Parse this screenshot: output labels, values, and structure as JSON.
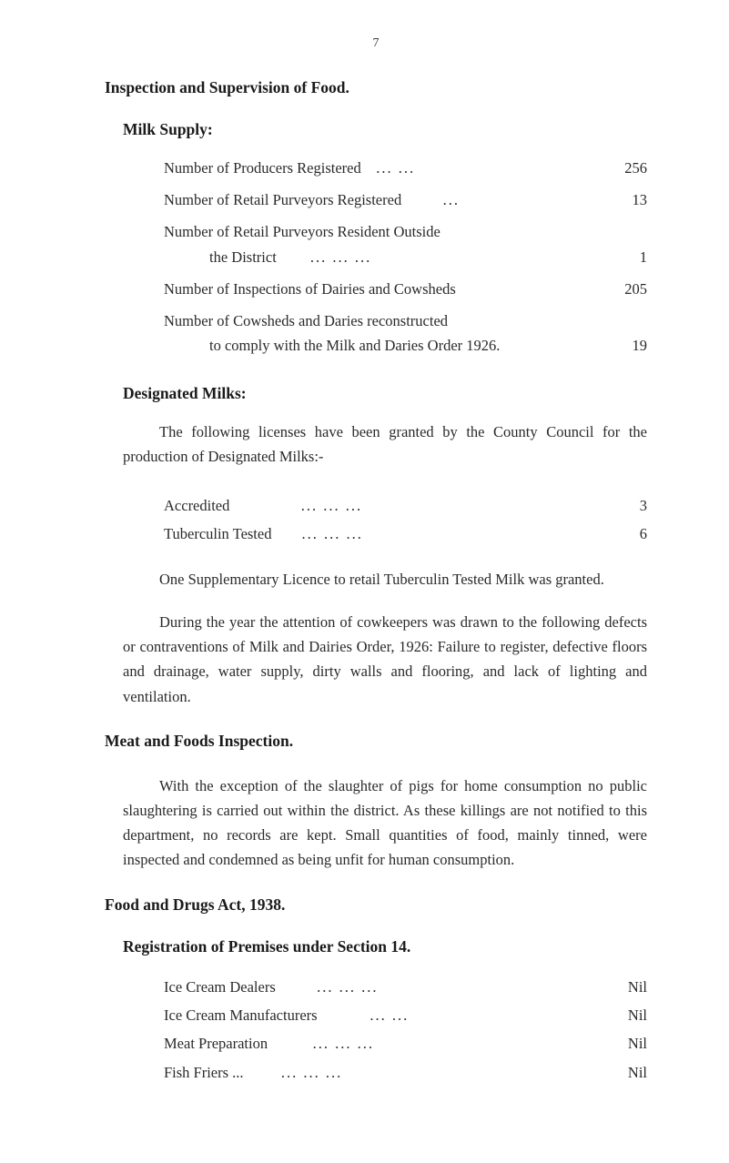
{
  "page_number": "7",
  "main_heading": "Inspection and Supervision of Food.",
  "milk_supply": {
    "heading": "Milk Supply:",
    "items": [
      {
        "label": "Number of Producers Registered",
        "dots": "...                           ...",
        "value": "256"
      },
      {
        "label": "Number of Retail Purveyors Registered",
        "dots": "...",
        "value": "13"
      },
      {
        "label": "Number of Retail Purveyors Resident Outside",
        "label2": "the District",
        "dots": "...                   ...                   ...",
        "value": "1"
      },
      {
        "label": "Number of Inspections of Dairies and Cowsheds",
        "dots": "",
        "value": "205"
      },
      {
        "label": "Number of Cowsheds and Daries reconstructed",
        "label2": "to comply with the Milk and Daries Order 1926.",
        "dots": "",
        "value": "19"
      }
    ]
  },
  "designated_milks": {
    "heading": "Designated Milks:",
    "intro": "The following licenses have been granted by the County Council for the production of Designated Milks:-",
    "items": [
      {
        "label": "Accredited",
        "dots": "...                    ...                    ...",
        "value": "3"
      },
      {
        "label": "Tuberculin Tested",
        "dots": "...                    ...                    ...",
        "value": "6"
      }
    ],
    "para1": "One Supplementary Licence to retail Tuberculin Tested Milk was granted.",
    "para2": "During the year the attention of cowkeepers was drawn to the following defects or contraventions of Milk and Dairies Order, 1926: Failure to register, defective floors and drainage, water supply, dirty walls and flooring, and lack of lighting and ventilation."
  },
  "meat_foods": {
    "heading": "Meat and Foods Inspection.",
    "para": "With the exception of the slaughter of pigs for home consumption no public slaughtering is carried out within the district. As these killings are not notified to this department, no records are kept. Small quantities of food, mainly tinned, were inspected and condemned as being unfit for human consumption."
  },
  "food_drugs": {
    "heading": "Food and Drugs Act, 1938.",
    "sub_heading": "Registration of Premises under Section 14.",
    "items": [
      {
        "label": "Ice Cream Dealers",
        "dots": "...                 ...                  ...",
        "value": "Nil"
      },
      {
        "label": "Ice Cream Manufacturers",
        "dots": "...                  ...",
        "value": "Nil"
      },
      {
        "label": "Meat Preparation",
        "dots": "...                 ...                  ...",
        "value": "Nil"
      },
      {
        "label": "Fish Friers        ...",
        "dots": "...                 ...                  ...",
        "value": "Nil"
      }
    ]
  }
}
